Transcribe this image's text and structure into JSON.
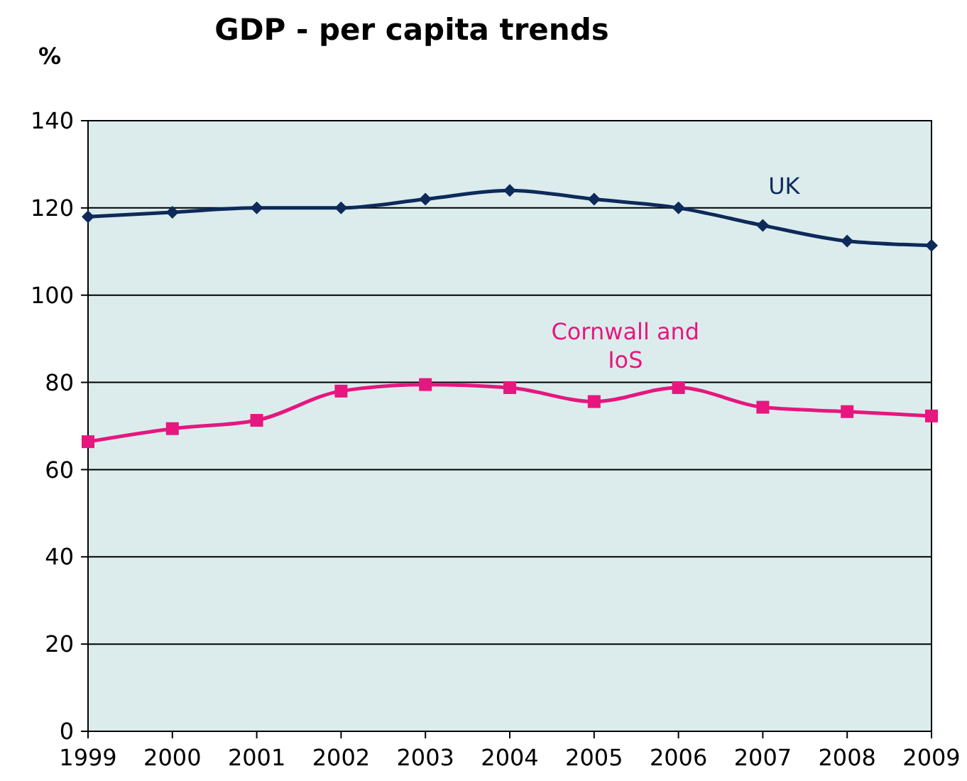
{
  "chart_data": {
    "type": "line",
    "title": "GDP - per capita trends",
    "ylabel": "%",
    "x": [
      1999,
      2000,
      2001,
      2002,
      2003,
      2004,
      2005,
      2006,
      2007,
      2008,
      2009
    ],
    "xlim": [
      1999,
      2009
    ],
    "xticks": [
      1999,
      2000,
      2001,
      2002,
      2003,
      2004,
      2005,
      2006,
      2007,
      2008,
      2009
    ],
    "ylim": [
      0,
      140
    ],
    "yticks": [
      0,
      20,
      40,
      60,
      80,
      100,
      120,
      140
    ],
    "grid": "y",
    "series": [
      {
        "name": "UK",
        "color": "#0d2a5a",
        "marker": "diamond",
        "values": [
          118,
          119,
          120,
          120,
          122,
          124,
          122,
          120,
          116,
          112.4,
          111.4
        ]
      },
      {
        "name": "Cornwall and IoS",
        "color": "#e6177f",
        "marker": "square",
        "values": [
          66.4,
          69.4,
          71.3,
          78,
          79.5,
          78.8,
          75.6,
          78.8,
          74.3,
          73.3,
          72.3
        ]
      }
    ]
  }
}
